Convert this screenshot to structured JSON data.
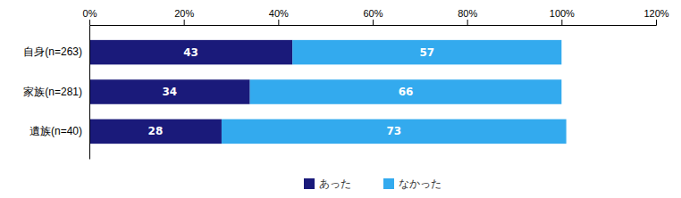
{
  "chart_data": {
    "type": "bar",
    "orientation": "horizontal",
    "stacked": true,
    "data_labels": true,
    "grid": false,
    "legend": "bottom",
    "categories": [
      "自身(n=263)",
      "家族(n=281)",
      "遺族(n=40)"
    ],
    "series": [
      {
        "name": "あった",
        "color": "#1a1a7a",
        "values": [
          43,
          34,
          28
        ]
      },
      {
        "name": "なかった",
        "color": "#33aaee",
        "values": [
          57,
          66,
          73
        ]
      }
    ],
    "xlim": [
      0,
      120
    ],
    "xticks": [
      {
        "value": 0,
        "label": "0%"
      },
      {
        "value": 20,
        "label": "20%"
      },
      {
        "value": 40,
        "label": "40%"
      },
      {
        "value": 60,
        "label": "60%"
      },
      {
        "value": 80,
        "label": "80%"
      },
      {
        "value": 100,
        "label": "100%"
      },
      {
        "value": 120,
        "label": "120%"
      }
    ]
  }
}
